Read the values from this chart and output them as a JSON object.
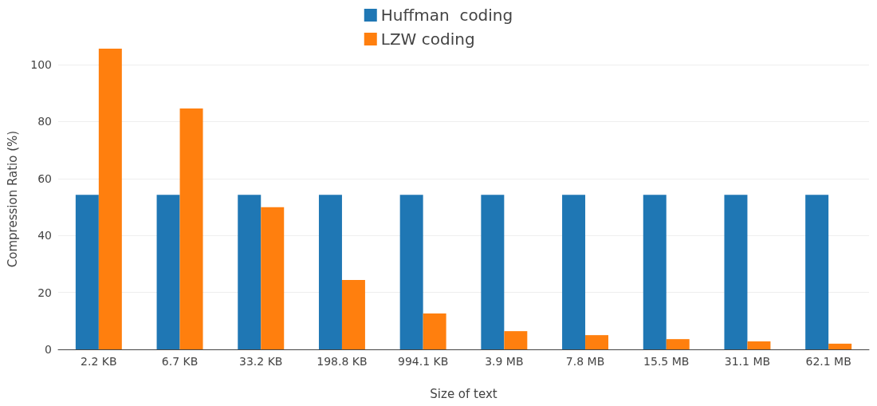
{
  "chart_data": {
    "type": "bar",
    "xlabel": "Size of text",
    "ylabel": "Compression Ratio (%)",
    "categories": [
      "2.2 KB",
      "6.7 KB",
      "33.2 KB",
      "198.8 KB",
      "994.1 KB",
      "3.9 MB",
      "7.8 MB",
      "15.5 MB",
      "31.1 MB",
      "62.1 MB"
    ],
    "series": [
      {
        "name": "Huffman  coding",
        "color": "#1f77b4",
        "values": [
          54.3,
          54.3,
          54.3,
          54.3,
          54.3,
          54.3,
          54.3,
          54.3,
          54.3,
          54.3
        ]
      },
      {
        "name": "LZW coding",
        "color": "#ff7f0e",
        "values": [
          105.6,
          84.6,
          49.9,
          24.4,
          12.6,
          6.4,
          5.0,
          3.6,
          2.8,
          2.0
        ]
      }
    ],
    "ylim": [
      0,
      105.6
    ],
    "yticks": [
      0,
      20,
      40,
      60,
      80,
      100
    ],
    "grid": "y",
    "legend": "top"
  }
}
